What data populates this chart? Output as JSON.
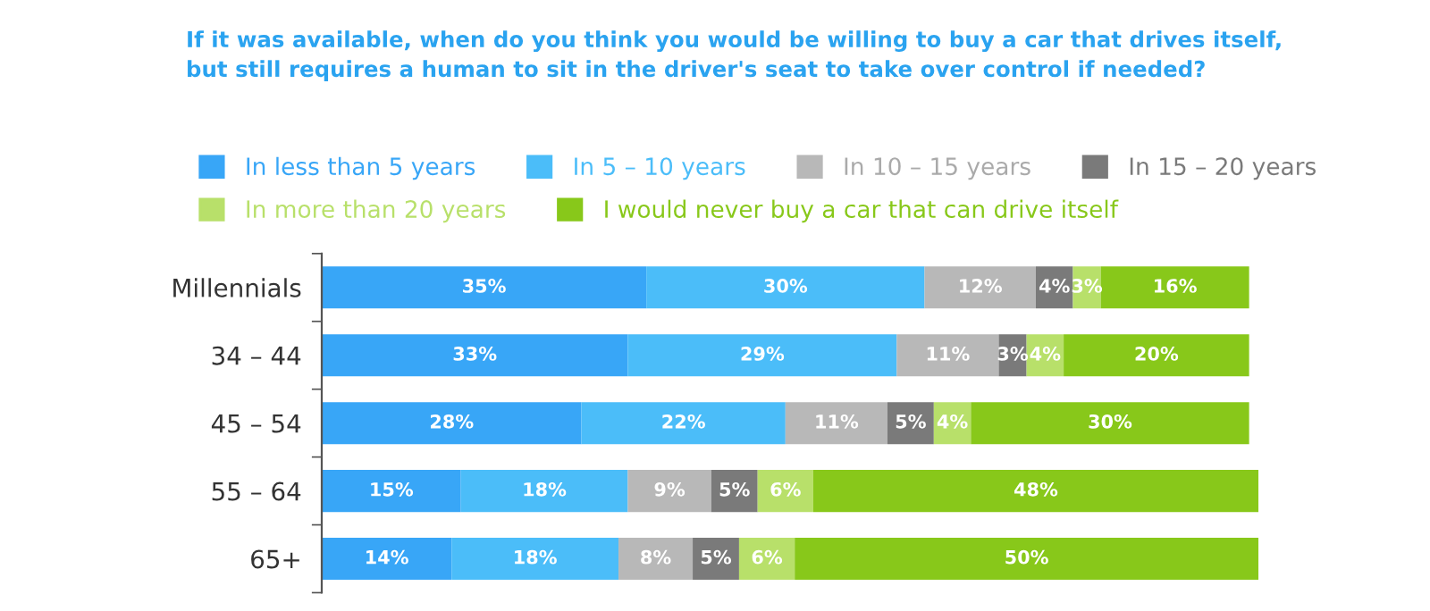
{
  "chart_data": {
    "type": "bar",
    "orientation": "horizontal",
    "stacked": true,
    "legend": "top",
    "grid": false,
    "title": "If it was available, when do you think you would be willing to buy a car that drives itself,\nbut still requires a human to sit in the driver's seat to take over control if needed?",
    "categories": [
      "Millennials",
      "34 – 44",
      "45 – 54",
      "55 – 64",
      "65+"
    ],
    "series": [
      {
        "name": "In less than 5 years",
        "color": "#38a6f7",
        "values": [
          35,
          33,
          28,
          15,
          14
        ],
        "value_labels": [
          "35%",
          "33%",
          "28%",
          "15%",
          "14%"
        ]
      },
      {
        "name": "In 5 – 10 years",
        "color": "#4bbdf9",
        "values": [
          30,
          29,
          22,
          18,
          18
        ],
        "value_labels": [
          "30%",
          "29%",
          "22%",
          "18%",
          "18%"
        ]
      },
      {
        "name": "In 10 – 15 years",
        "color": "#b8b8b8",
        "values": [
          12,
          11,
          11,
          9,
          8
        ],
        "value_labels": [
          "12%",
          "11%",
          "11%",
          "9%",
          "8%"
        ]
      },
      {
        "name": "In 15 – 20 years",
        "color": "#7a7a7a",
        "values": [
          4,
          3,
          5,
          5,
          5
        ],
        "value_labels": [
          "4%",
          "3%",
          "5%",
          "5%",
          "5%"
        ]
      },
      {
        "name": "In more than 20 years",
        "color": "#b8e06a",
        "values": [
          3,
          4,
          4,
          6,
          6
        ],
        "value_labels": [
          "3%",
          "4%",
          "4%",
          "6%",
          "6%"
        ]
      },
      {
        "name": "I would never buy a car that can drive itself",
        "color": "#88c81a",
        "values": [
          16,
          20,
          30,
          48,
          50
        ],
        "value_labels": [
          "16%",
          "20%",
          "30%",
          "48%",
          "50%"
        ]
      }
    ]
  }
}
